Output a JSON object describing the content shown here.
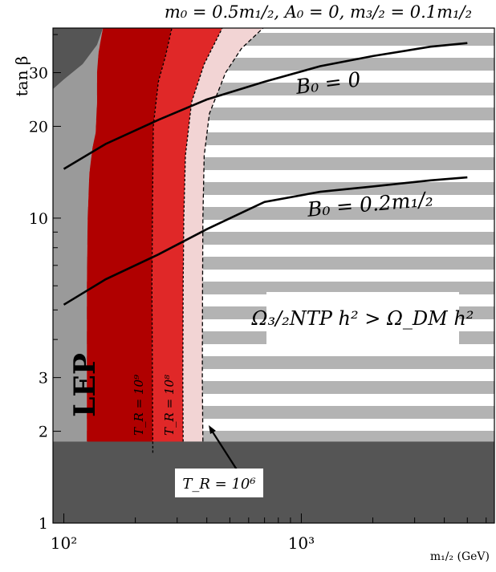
{
  "chart_data": {
    "type": "contour",
    "title": "m₀ = 0.5m₁/₂, A₀ = 0, m₃/₂ = 0.1m₁/₂",
    "xlabel": "m₁/₂ (GeV)",
    "ylabel": "tan β",
    "xscale": "log",
    "yscale": "log",
    "xlim": [
      90,
      6500
    ],
    "ylim": [
      1,
      42
    ],
    "x_ticks": [
      {
        "v": 100,
        "label": "10²"
      },
      {
        "v": 1000,
        "label": "10³"
      }
    ],
    "y_ticks": [
      {
        "v": 1,
        "label": "1"
      },
      {
        "v": 2,
        "label": "2"
      },
      {
        "v": 3,
        "label": "3"
      },
      {
        "v": 10,
        "label": "10"
      },
      {
        "v": 20,
        "label": "20"
      },
      {
        "v": 30,
        "label": "30"
      }
    ],
    "colors": {
      "dark_gray": "#555555",
      "mid_gray": "#9a9a9a",
      "stripe_gray": "#b3b3b3",
      "dark_red": "#b00000",
      "red": "#e02828",
      "pink": "#f2d4d4",
      "curve": "#000000"
    },
    "regions": [
      {
        "label": "LEP",
        "description": "excluded (light gray band, left)"
      },
      {
        "label": "Ω₃/₂NTP h² > Ω_DM h²",
        "description": "excluded (striped region)"
      }
    ],
    "contours": [
      {
        "label": "T_R = 10⁹",
        "boundary": [
          [
            237,
            1.8
          ],
          [
            236,
            3
          ],
          [
            235,
            6
          ],
          [
            236,
            10
          ],
          [
            238,
            20
          ],
          [
            250,
            28
          ],
          [
            268,
            34
          ],
          [
            285,
            42
          ]
        ]
      },
      {
        "label": "T_R = 10⁸",
        "boundary": [
          [
            318,
            1.85
          ],
          [
            317,
            3
          ],
          [
            318,
            6
          ],
          [
            320,
            10
          ],
          [
            325,
            16
          ],
          [
            345,
            24
          ],
          [
            390,
            32
          ],
          [
            465,
            42
          ]
        ]
      },
      {
        "label": "T_R = 10⁶",
        "boundary": [
          [
            385,
            1.85
          ],
          [
            383,
            3
          ],
          [
            384,
            6
          ],
          [
            385,
            10
          ],
          [
            390,
            16
          ],
          [
            410,
            22
          ],
          [
            480,
            30
          ],
          [
            560,
            36
          ],
          [
            690,
            42
          ]
        ]
      }
    ],
    "series": [
      {
        "name": "B₀ = 0",
        "x": [
          100,
          150,
          250,
          400,
          700,
          1200,
          2000,
          3500,
          5000
        ],
        "y": [
          14.5,
          17.5,
          21,
          24.5,
          28,
          31.5,
          34,
          36.5,
          37.5
        ]
      },
      {
        "name": "B₀ = 0.2m₁/₂",
        "x": [
          100,
          150,
          250,
          400,
          700,
          1200,
          2000,
          3500,
          5000
        ],
        "y": [
          5.2,
          6.3,
          7.6,
          9.2,
          11.3,
          12.2,
          12.7,
          13.3,
          13.6
        ]
      }
    ],
    "annotations": {
      "lep": "LEP",
      "b0_zero": "B₀ = 0",
      "b0_point2": "B₀ = 0.2m₁/₂",
      "omega": "Ω₃/₂NTP h² > Ω_DM h²",
      "tr9": "T_R = 10⁹",
      "tr8": "T_R = 10⁸",
      "tr6": "T_R = 10⁶"
    }
  }
}
